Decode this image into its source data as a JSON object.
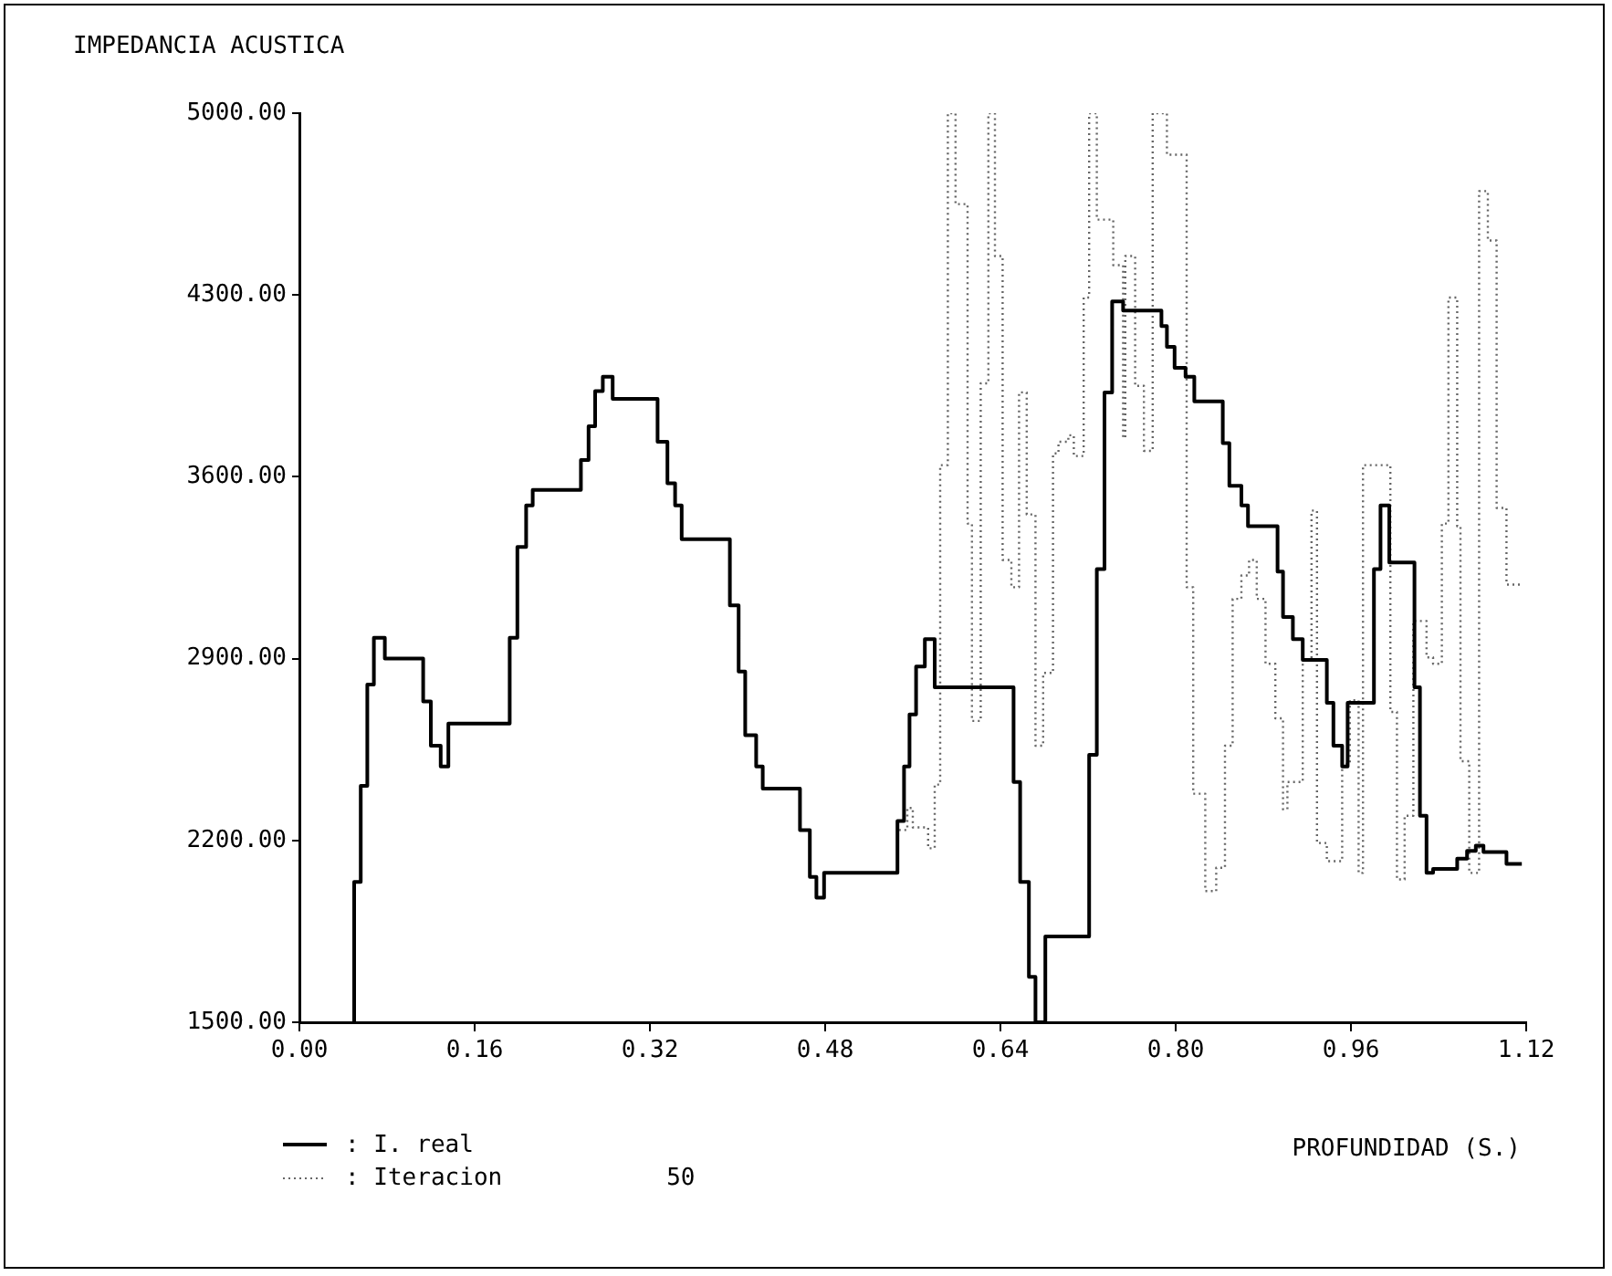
{
  "chart_data": {
    "type": "step",
    "title": "IMPEDANCIA ACUSTICA",
    "xlabel": "PROFUNDIDAD (S.)",
    "xlim": [
      0,
      1.12
    ],
    "xticks": [
      {
        "value": 0,
        "label": "0.00"
      },
      {
        "value": 0.16,
        "label": "0.16"
      },
      {
        "value": 0.32,
        "label": "0.32"
      },
      {
        "value": 0.48,
        "label": "0.48"
      },
      {
        "value": 0.64,
        "label": "0.64"
      },
      {
        "value": 0.8,
        "label": "0.80"
      },
      {
        "value": 0.96,
        "label": "0.96"
      },
      {
        "value": 1.12,
        "label": "1.12"
      }
    ],
    "ylim": [
      1500,
      5000
    ],
    "yticks": [
      {
        "value": 1500,
        "label": "1500.00"
      },
      {
        "value": 2200,
        "label": "2200.00"
      },
      {
        "value": 2900,
        "label": "2900.00"
      },
      {
        "value": 3600,
        "label": "3600.00"
      },
      {
        "value": 4300,
        "label": "4300.00"
      },
      {
        "value": 5000,
        "label": "5000.00"
      }
    ],
    "grid": false,
    "legend": "bottom left",
    "marker": "none",
    "annotations": [
      "50"
    ],
    "series": [
      {
        "name": ": I. real",
        "color": "#000000",
        "line_style": "solid",
        "x": [
          0.05,
          0.05,
          0.056,
          0.062,
          0.068,
          0.078,
          0.113,
          0.12,
          0.129,
          0.136,
          0.192,
          0.199,
          0.207,
          0.213,
          0.257,
          0.264,
          0.27,
          0.277,
          0.286,
          0.327,
          0.336,
          0.343,
          0.349,
          0.393,
          0.401,
          0.407,
          0.417,
          0.423,
          0.457,
          0.466,
          0.472,
          0.479,
          0.546,
          0.552,
          0.557,
          0.563,
          0.571,
          0.58,
          0.652,
          0.658,
          0.666,
          0.672,
          0.681,
          0.721,
          0.728,
          0.735,
          0.742,
          0.752,
          0.787,
          0.792,
          0.799,
          0.809,
          0.817,
          0.843,
          0.849,
          0.86,
          0.866,
          0.893,
          0.898,
          0.907,
          0.916,
          0.938,
          0.944,
          0.952,
          0.957,
          0.981,
          0.987,
          0.995,
          1.018,
          1.023,
          1.029,
          1.035,
          1.057,
          1.066,
          1.074,
          1.081,
          1.102,
          1.107,
          1.116
        ],
        "values": [
          1500,
          1670,
          2040,
          2410,
          2800,
          2980,
          2900,
          2735,
          2565,
          2485,
          2650,
          2980,
          3330,
          3490,
          3550,
          3665,
          3795,
          3930,
          3985,
          3900,
          3735,
          3575,
          3490,
          3360,
          3105,
          2850,
          2605,
          2485,
          2400,
          2240,
          2060,
          1980,
          2075,
          2275,
          2485,
          2685,
          2870,
          2975,
          2790,
          2425,
          2040,
          1675,
          1500,
          1830,
          2530,
          3245,
          3925,
          4275,
          4240,
          4180,
          4100,
          4020,
          3985,
          3890,
          3730,
          3565,
          3490,
          3410,
          3235,
          3060,
          2975,
          2895,
          2730,
          2565,
          2485,
          2730,
          3245,
          3490,
          3270,
          2790,
          2295,
          2075,
          2090,
          2130,
          2160,
          2180,
          2155,
          2110,
          2110
        ]
      },
      {
        "name": ": Iteracion",
        "color": "#666666",
        "line_style": "dotted",
        "x": [
          0.479,
          0.546,
          0.555,
          0.56,
          0.574,
          0.58,
          0.585,
          0.592,
          0.599,
          0.61,
          0.614,
          0.622,
          0.629,
          0.635,
          0.642,
          0.65,
          0.657,
          0.664,
          0.672,
          0.679,
          0.688,
          0.693,
          0.702,
          0.707,
          0.716,
          0.721,
          0.728,
          0.743,
          0.752,
          0.754,
          0.763,
          0.771,
          0.779,
          0.792,
          0.81,
          0.816,
          0.827,
          0.837,
          0.845,
          0.852,
          0.86,
          0.867,
          0.874,
          0.882,
          0.891,
          0.898,
          0.902,
          0.916,
          0.924,
          0.929,
          0.938,
          0.952,
          0.959,
          0.967,
          0.971,
          0.996,
          1.002,
          1.009,
          1.017,
          1.029,
          1.035,
          1.043,
          1.049,
          1.057,
          1.06,
          1.068,
          1.077,
          1.085,
          1.093,
          1.102,
          1.109,
          1.116
        ],
        "values": [
          1980,
          2075,
          2240,
          2325,
          2250,
          2170,
          2415,
          3645,
          5000,
          4650,
          3420,
          2660,
          3960,
          5000,
          4450,
          3280,
          3175,
          3925,
          3455,
          2565,
          2845,
          3690,
          3735,
          3760,
          3680,
          4290,
          5000,
          4590,
          4415,
          3750,
          4450,
          3950,
          3700,
          5000,
          4840,
          3175,
          2380,
          2005,
          2095,
          2565,
          3130,
          3220,
          3280,
          3130,
          2880,
          2670,
          2320,
          2425,
          2895,
          3470,
          2190,
          2120,
          2495,
          2740,
          2075,
          3645,
          2695,
          2050,
          2295,
          3045,
          2905,
          2880,
          3420,
          4290,
          3410,
          2505,
          2075,
          4700,
          4510,
          3480,
          3185,
          3185
        ]
      }
    ]
  }
}
